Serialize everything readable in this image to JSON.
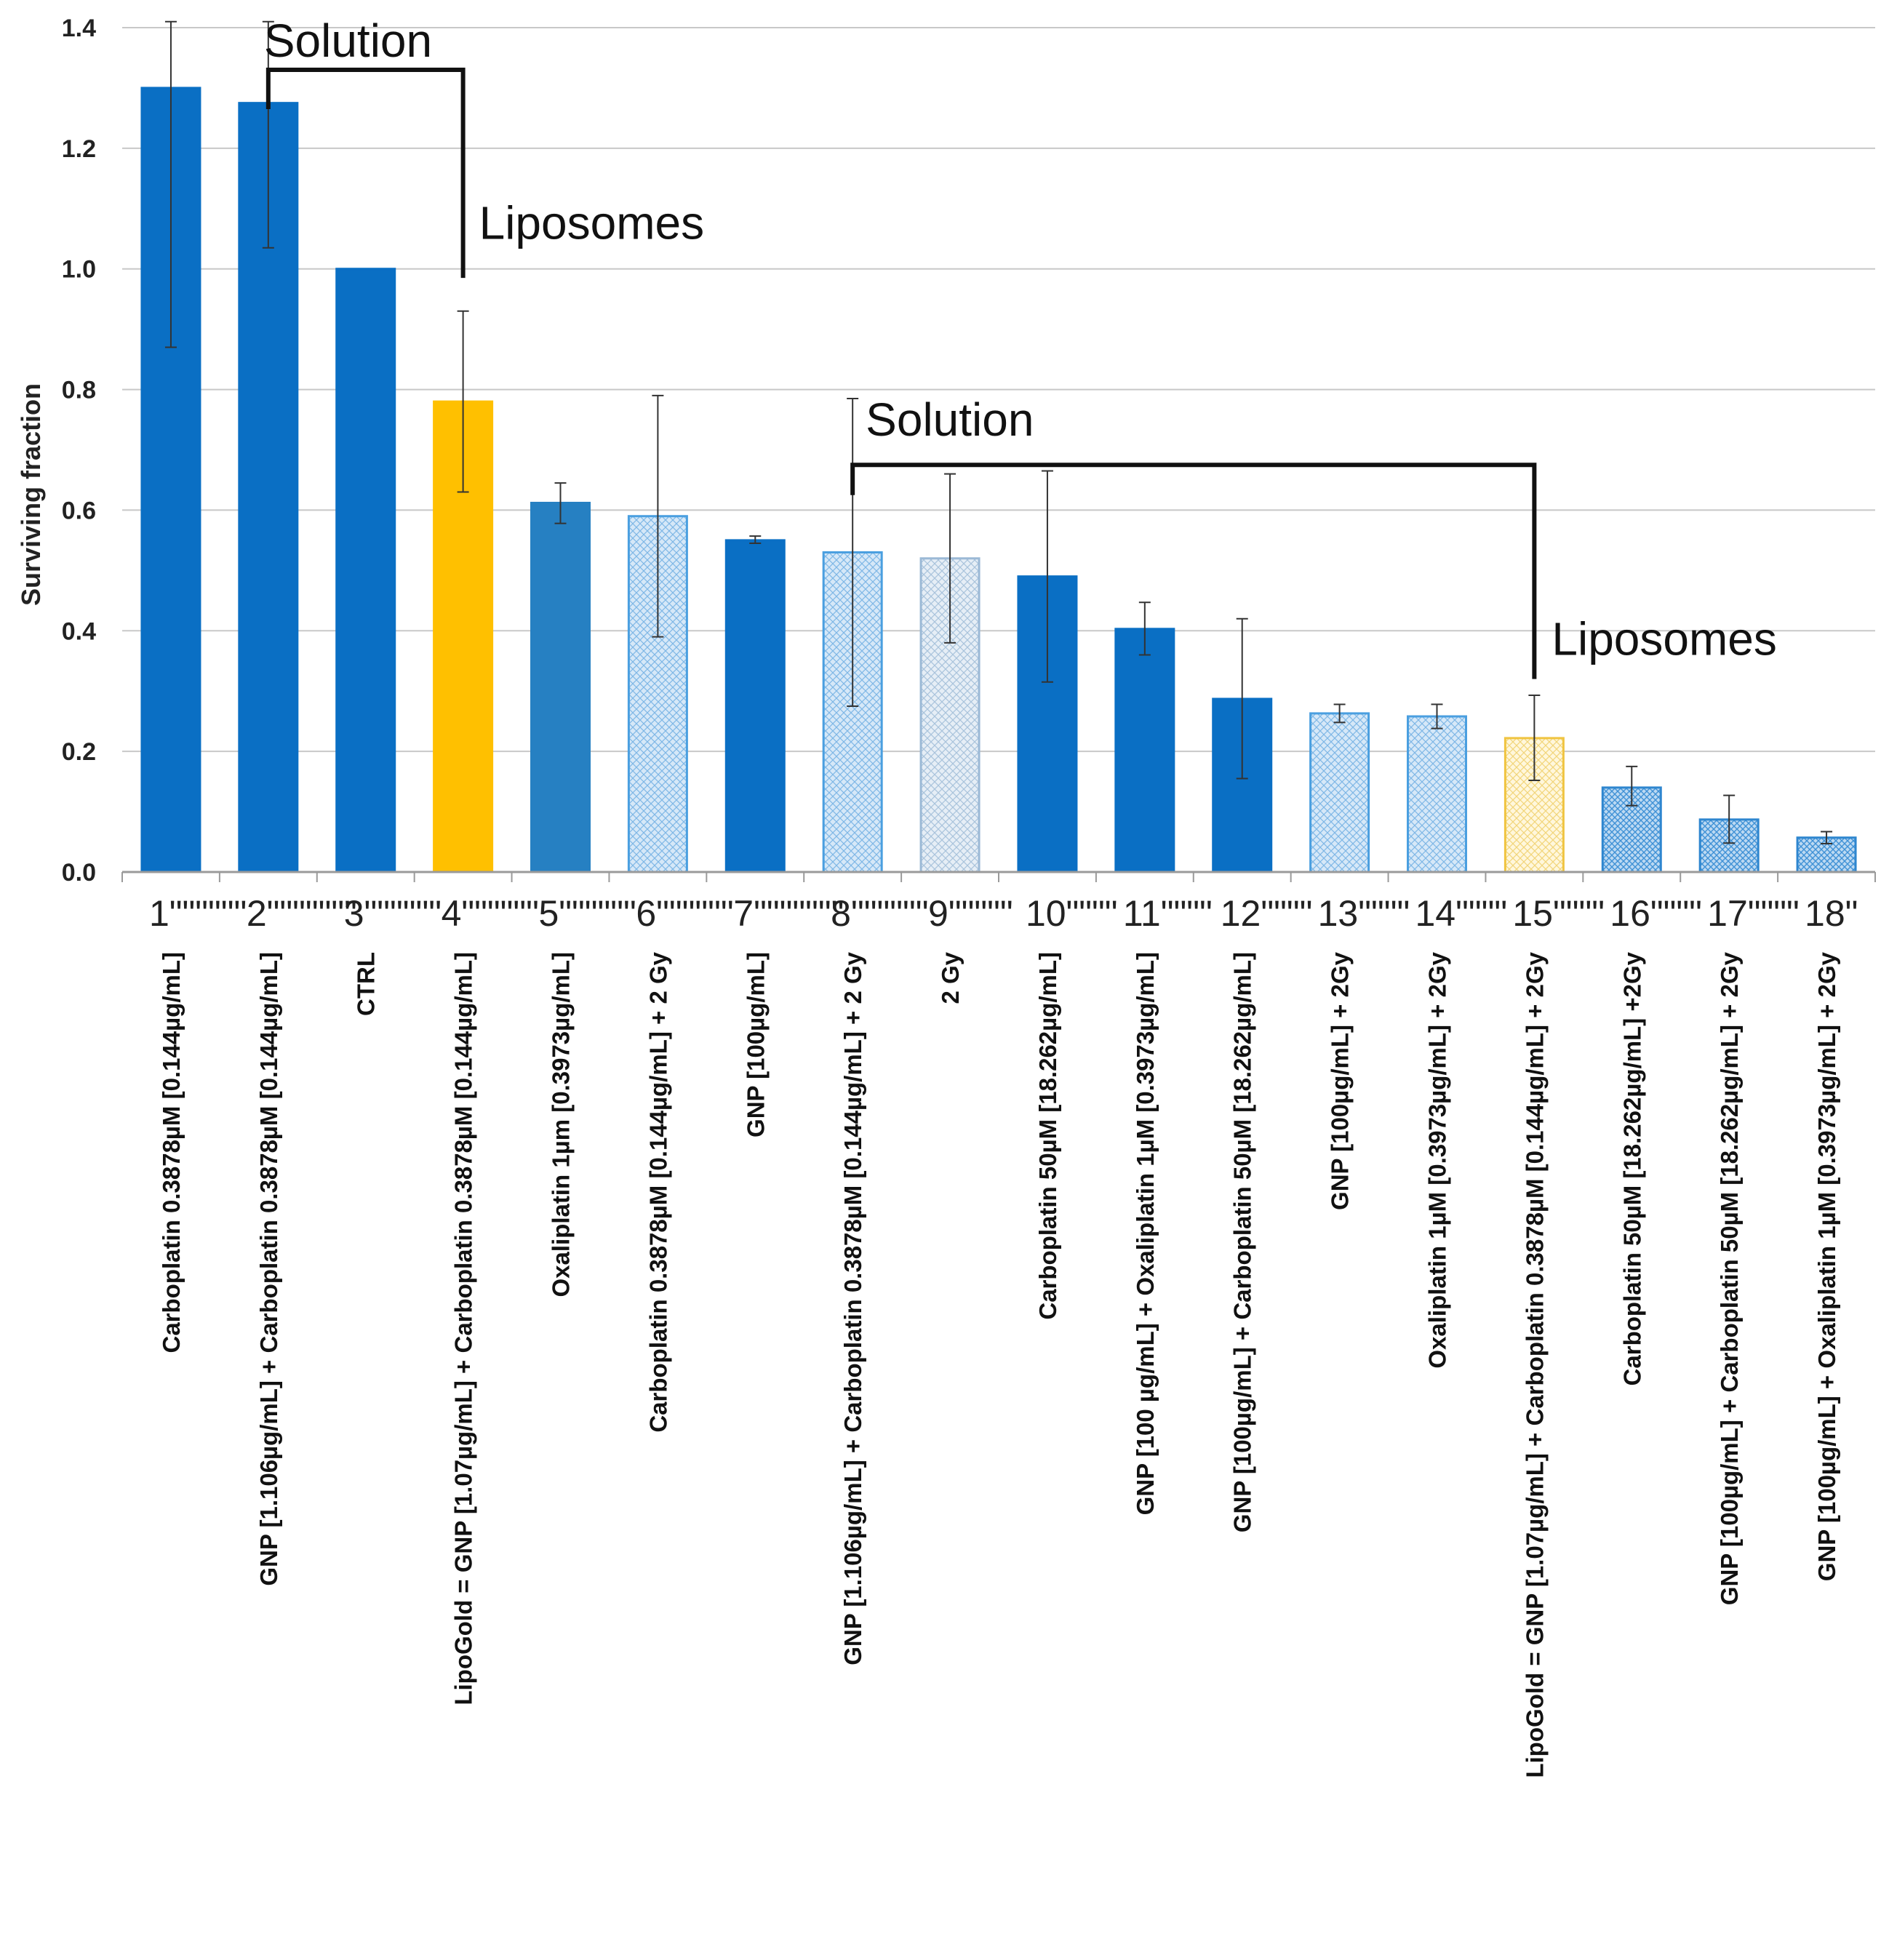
{
  "chart_data": {
    "type": "bar",
    "title": "",
    "xlabel": "",
    "ylabel": "Surviving fraction",
    "ylim": [
      0,
      1.4
    ],
    "ytick_step": 0.2,
    "yticks": [
      "0.0",
      "0.2",
      "0.4",
      "0.6",
      "0.8",
      "1.0",
      "1.2",
      "1.4"
    ],
    "grid": true,
    "colors": {
      "blue_solid": "#0A6FC4",
      "blue_mid": "#2680C2",
      "gold": "#FFC000",
      "hatch_stroke": "#4A9FE0",
      "hatch_fill": "#D8E9F8",
      "grid": "#C8C8C8",
      "axis": "#9A9A9A",
      "error_bar": "#333333",
      "bracket": "#111111"
    },
    "numbers": [
      "1\"\"\"\"\"\"",
      "2\"\"\"\"\"\"\"",
      "3\"\"\"\"\"\"",
      "4\"\"\"\"\"\"",
      "5\"\"\"\"\"\"",
      "6\"\"\"\"\"\"",
      "7\"\"\"\"\"\"\"",
      "8\"\"\"\"\"\"",
      "9\"\"\"\"\"",
      "10\"\"\"\"",
      "11\"\"\"\"",
      "12\"\"\"\"",
      "13\"\"\"\"",
      "14\"\"\"\"",
      "15\"\"\"\"",
      "16\"\"\"\"",
      "17\"\"\"\"",
      "18\""
    ],
    "categories": [
      "Carboplatin 0.3878µM [0.144µg/mL]",
      "GNP [1.106µg/mL] + Carboplatin  0.3878µM [0.144µg/mL]",
      "CTRL",
      "LipoGold = GNP [1.07µg/mL] + Carboplatin  0.3878µM [0.144µg/mL]",
      "Oxaliplatin 1µm [0.3973µg/mL]",
      "Carboplatin 0.3878µM [0.144µg/mL] + 2 Gy",
      "GNP [100µg/mL]",
      "GNP [1.106µg/mL] + Carboplatin  0.3878µM [0.144µg/mL] + 2 Gy",
      "2 Gy",
      "Carboplatin 50µM [18.262µg/mL]",
      "GNP [100 µg/mL] + Oxaliplatin 1µM [0.3973µg/mL]",
      "GNP [100µg/mL] + Carboplatin 50µM [18.262µg/mL]",
      "GNP [100µg/mL] + 2Gy",
      "Oxaliplatin 1µM [0.3973µg/mL] + 2Gy",
      "LipoGold = GNP [1.07µg/mL] + Carboplatin  0.3878µM [0.144µg/mL] + 2Gy",
      "Carboplatin 50µM [18.262µg/mL] +2Gy",
      "GNP [100µg/mL] + Carboplatin 50µM [18.262µg/mL] + 2Gy",
      "GNP [100µg/mL] + Oxaliplatin 1µM [0.3973µg/mL] + 2Gy"
    ],
    "values": [
      1.3,
      1.275,
      1.0,
      0.78,
      0.612,
      0.59,
      0.55,
      0.53,
      0.52,
      0.49,
      0.403,
      0.287,
      0.263,
      0.258,
      0.222,
      0.14,
      0.087,
      0.057
    ],
    "error_low": [
      0.87,
      1.035,
      1.0,
      0.63,
      0.578,
      0.39,
      0.545,
      0.275,
      0.38,
      0.315,
      0.36,
      0.155,
      0.248,
      0.238,
      0.152,
      0.11,
      0.048,
      0.047
    ],
    "error_high": [
      1.41,
      1.41,
      1.0,
      0.93,
      0.645,
      0.79,
      0.557,
      0.785,
      0.66,
      0.665,
      0.447,
      0.42,
      0.278,
      0.278,
      0.293,
      0.175,
      0.127,
      0.067
    ],
    "styles": [
      "blue_solid",
      "blue_solid",
      "blue_solid",
      "gold",
      "blue_mid",
      "hatch_blue",
      "blue_solid",
      "hatch_blue",
      "hatch_light",
      "blue_solid",
      "blue_solid",
      "blue_solid",
      "hatch_blue",
      "hatch_blue",
      "hatch_gold",
      "hatch_dense",
      "hatch_dense",
      "hatch_dense"
    ],
    "annotations": [
      {
        "text": "Solution",
        "from_bar": 2,
        "to_bar": 4,
        "level": 1.33,
        "label_at": "bar2"
      },
      {
        "text": "Liposomes",
        "at_bar": 4,
        "level": 1.05
      },
      {
        "text": "Solution",
        "from_bar": 8,
        "to_bar": 15,
        "level": 0.675,
        "label_at": "bar8"
      },
      {
        "text": "Liposomes",
        "at_bar": 15,
        "level": 0.36
      }
    ]
  }
}
